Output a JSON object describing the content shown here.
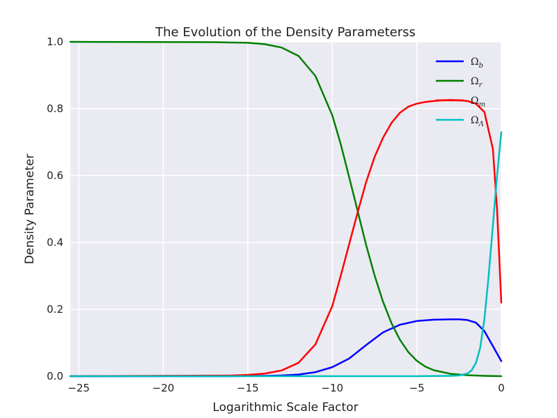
{
  "chart_data": {
    "type": "line",
    "title": "The Evolution of the Density Parameterss",
    "xlabel": "Logarithmic Scale Factor",
    "ylabel": "Density Parameter",
    "xlim": [
      -25.5,
      0
    ],
    "ylim": [
      0,
      1
    ],
    "xticks": [
      -25,
      -20,
      -15,
      -10,
      -5,
      0
    ],
    "xtick_labels": [
      "−25",
      "−20",
      "−15",
      "−10",
      "−5",
      "0"
    ],
    "yticks": [
      0,
      0.2,
      0.4,
      0.6,
      0.8,
      1.0
    ],
    "ytick_labels": [
      "0.0",
      "0.2",
      "0.4",
      "0.6",
      "0.8",
      "1.0"
    ],
    "grid": true,
    "legend_position": "top-right",
    "series": [
      {
        "name": "Ω_b",
        "label_main": "Ω",
        "label_sub": "b",
        "color": "#0000ff",
        "x": [
          -25.5,
          -16,
          -14,
          -13,
          -12,
          -11,
          -10,
          -9,
          -8,
          -7,
          -6,
          -5,
          -4,
          -3,
          -2.5,
          -2,
          -1.5,
          -1,
          -0.5,
          0
        ],
        "y": [
          0,
          0,
          0.001,
          0.002,
          0.005,
          0.012,
          0.027,
          0.053,
          0.093,
          0.131,
          0.154,
          0.165,
          0.169,
          0.17,
          0.17,
          0.168,
          0.16,
          0.135,
          0.09,
          0.045
        ]
      },
      {
        "name": "Ω_r",
        "label_main": "Ω",
        "label_sub": "r",
        "color": "#008000",
        "x": [
          -25.5,
          -17,
          -16,
          -15,
          -14,
          -13,
          -12,
          -11,
          -10,
          -9.5,
          -9,
          -8.5,
          -8,
          -7.5,
          -7,
          -6.5,
          -6,
          -5.5,
          -5,
          -4.5,
          -4,
          -3,
          -2,
          -1,
          0
        ],
        "y": [
          1.0,
          0.999,
          0.998,
          0.997,
          0.993,
          0.983,
          0.958,
          0.898,
          0.78,
          0.694,
          0.595,
          0.494,
          0.393,
          0.302,
          0.223,
          0.159,
          0.109,
          0.072,
          0.046,
          0.029,
          0.018,
          0.007,
          0.003,
          0.001,
          0
        ]
      },
      {
        "name": "Ω_m",
        "label_main": "Ω",
        "label_sub": "m",
        "color": "#ff0000",
        "x": [
          -25.5,
          -16,
          -15,
          -14,
          -13,
          -12,
          -11,
          -10,
          -9.5,
          -9,
          -8.5,
          -8,
          -7.5,
          -7,
          -6.5,
          -6,
          -5.5,
          -5,
          -4.5,
          -4,
          -3.5,
          -3,
          -2.5,
          -2,
          -1.5,
          -1,
          -0.5,
          -0.25,
          0
        ],
        "y": [
          0,
          0.002,
          0.004,
          0.008,
          0.017,
          0.04,
          0.095,
          0.21,
          0.3,
          0.395,
          0.49,
          0.58,
          0.655,
          0.713,
          0.757,
          0.788,
          0.806,
          0.815,
          0.82,
          0.823,
          0.825,
          0.826,
          0.825,
          0.823,
          0.815,
          0.79,
          0.68,
          0.5,
          0.22
        ]
      },
      {
        "name": "Ω_Λ",
        "label_main": "Ω",
        "label_sub": "Λ",
        "color": "#00bfbf",
        "x": [
          -25.5,
          -5,
          -3,
          -2.5,
          -2,
          -1.75,
          -1.5,
          -1.25,
          -1,
          -0.75,
          -0.5,
          -0.25,
          0
        ],
        "y": [
          0,
          0,
          0.001,
          0.002,
          0.008,
          0.018,
          0.04,
          0.085,
          0.17,
          0.3,
          0.45,
          0.6,
          0.73
        ]
      }
    ]
  }
}
